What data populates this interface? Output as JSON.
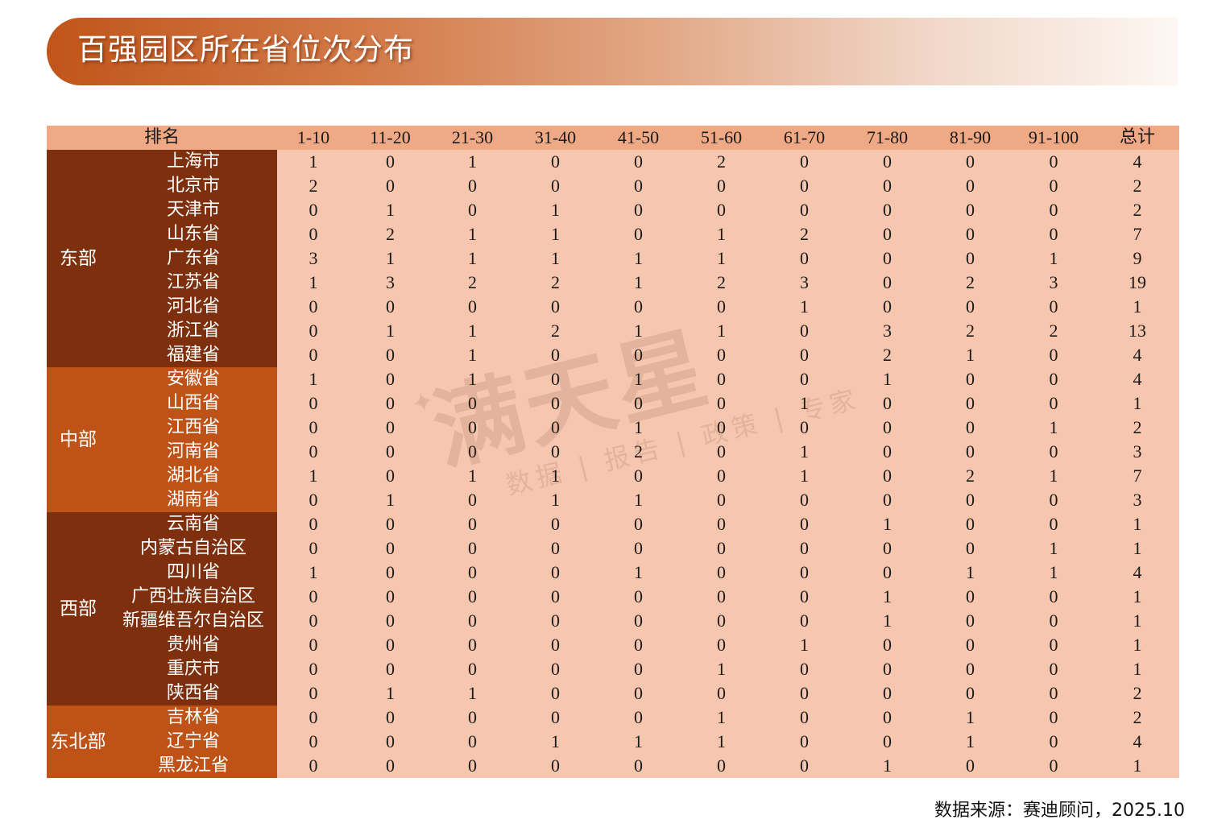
{
  "title": "百强园区所在省位次分布",
  "table": {
    "headers": [
      "排名",
      "1-10",
      "11-20",
      "21-30",
      "31-40",
      "41-50",
      "51-60",
      "61-70",
      "71-80",
      "81-90",
      "91-100",
      "总计"
    ],
    "groups": [
      {
        "region": "东部",
        "rows": [
          {
            "province": "上海市",
            "values": [
              "1",
              "0",
              "1",
              "0",
              "0",
              "2",
              "0",
              "0",
              "0",
              "0",
              "4"
            ]
          },
          {
            "province": "北京市",
            "values": [
              "2",
              "0",
              "0",
              "0",
              "0",
              "0",
              "0",
              "0",
              "0",
              "0",
              "2"
            ]
          },
          {
            "province": "天津市",
            "values": [
              "0",
              "1",
              "0",
              "1",
              "0",
              "0",
              "0",
              "0",
              "0",
              "0",
              "2"
            ]
          },
          {
            "province": "山东省",
            "values": [
              "0",
              "2",
              "1",
              "1",
              "0",
              "1",
              "2",
              "0",
              "0",
              "0",
              "7"
            ]
          },
          {
            "province": "广东省",
            "values": [
              "3",
              "1",
              "1",
              "1",
              "1",
              "1",
              "0",
              "0",
              "0",
              "1",
              "9"
            ]
          },
          {
            "province": "江苏省",
            "values": [
              "1",
              "3",
              "2",
              "2",
              "1",
              "2",
              "3",
              "0",
              "2",
              "3",
              "19"
            ]
          },
          {
            "province": "河北省",
            "values": [
              "0",
              "0",
              "0",
              "0",
              "0",
              "0",
              "1",
              "0",
              "0",
              "0",
              "1"
            ]
          },
          {
            "province": "浙江省",
            "values": [
              "0",
              "1",
              "1",
              "2",
              "1",
              "1",
              "0",
              "3",
              "2",
              "2",
              "13"
            ]
          },
          {
            "province": "福建省",
            "values": [
              "0",
              "0",
              "1",
              "0",
              "0",
              "0",
              "0",
              "2",
              "1",
              "0",
              "4"
            ]
          }
        ]
      },
      {
        "region": "中部",
        "rows": [
          {
            "province": "安徽省",
            "values": [
              "1",
              "0",
              "1",
              "0",
              "1",
              "0",
              "0",
              "1",
              "0",
              "0",
              "4"
            ]
          },
          {
            "province": "山西省",
            "values": [
              "0",
              "0",
              "0",
              "0",
              "0",
              "0",
              "1",
              "0",
              "0",
              "0",
              "1"
            ]
          },
          {
            "province": "江西省",
            "values": [
              "0",
              "0",
              "0",
              "0",
              "1",
              "0",
              "0",
              "0",
              "0",
              "1",
              "2"
            ]
          },
          {
            "province": "河南省",
            "values": [
              "0",
              "0",
              "0",
              "0",
              "2",
              "0",
              "1",
              "0",
              "0",
              "0",
              "3"
            ]
          },
          {
            "province": "湖北省",
            "values": [
              "1",
              "0",
              "1",
              "1",
              "0",
              "0",
              "1",
              "0",
              "2",
              "1",
              "7"
            ]
          },
          {
            "province": "湖南省",
            "values": [
              "0",
              "1",
              "0",
              "1",
              "1",
              "0",
              "0",
              "0",
              "0",
              "0",
              "3"
            ]
          }
        ]
      },
      {
        "region": "西部",
        "rows": [
          {
            "province": "云南省",
            "values": [
              "0",
              "0",
              "0",
              "0",
              "0",
              "0",
              "0",
              "1",
              "0",
              "0",
              "1"
            ]
          },
          {
            "province": "内蒙古自治区",
            "values": [
              "0",
              "0",
              "0",
              "0",
              "0",
              "0",
              "0",
              "0",
              "0",
              "1",
              "1"
            ]
          },
          {
            "province": "四川省",
            "values": [
              "1",
              "0",
              "0",
              "0",
              "1",
              "0",
              "0",
              "0",
              "1",
              "1",
              "4"
            ]
          },
          {
            "province": "广西壮族自治区",
            "values": [
              "0",
              "0",
              "0",
              "0",
              "0",
              "0",
              "0",
              "1",
              "0",
              "0",
              "1"
            ]
          },
          {
            "province": "新疆维吾尔自治区",
            "values": [
              "0",
              "0",
              "0",
              "0",
              "0",
              "0",
              "0",
              "1",
              "0",
              "0",
              "1"
            ]
          },
          {
            "province": "贵州省",
            "values": [
              "0",
              "0",
              "0",
              "0",
              "0",
              "0",
              "1",
              "0",
              "0",
              "0",
              "1"
            ]
          },
          {
            "province": "重庆市",
            "values": [
              "0",
              "0",
              "0",
              "0",
              "0",
              "1",
              "0",
              "0",
              "0",
              "0",
              "1"
            ]
          },
          {
            "province": "陕西省",
            "values": [
              "0",
              "1",
              "1",
              "0",
              "0",
              "0",
              "0",
              "0",
              "0",
              "0",
              "2"
            ]
          }
        ]
      },
      {
        "region": "东北部",
        "rows": [
          {
            "province": "吉林省",
            "values": [
              "0",
              "0",
              "0",
              "0",
              "0",
              "1",
              "0",
              "0",
              "1",
              "0",
              "2"
            ]
          },
          {
            "province": "辽宁省",
            "values": [
              "0",
              "0",
              "0",
              "1",
              "1",
              "1",
              "0",
              "0",
              "1",
              "0",
              "4"
            ]
          },
          {
            "province": "黑龙江省",
            "values": [
              "0",
              "0",
              "0",
              "0",
              "0",
              "0",
              "0",
              "1",
              "0",
              "0",
              "1"
            ]
          }
        ]
      }
    ]
  },
  "watermark": {
    "main": "满天星",
    "sub": "数据 | 报告 | 政策 | 专家"
  },
  "source": "数据来源：赛迪顾问，2025.10",
  "colors": {
    "header_bg": "#f0a985",
    "cell_bg": "#f7c6ae",
    "region_dark": "#7e300e",
    "region_orange": "#bf5216",
    "title_start": "#c0551a"
  }
}
